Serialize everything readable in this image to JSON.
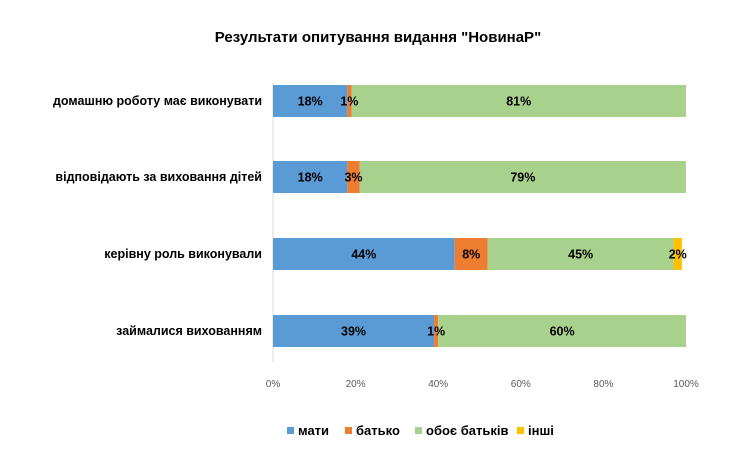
{
  "chart_data": {
    "type": "bar",
    "orientation": "horizontal",
    "stacked": true,
    "title": "Результати опитування видання \"НовинаР\"",
    "categories": [
      "домашню роботу має виконувати",
      "відповідають за виховання дітей",
      "керівну роль виконували",
      "займалися вихованням"
    ],
    "series": [
      {
        "name": "мати",
        "color": "#5B9BD5",
        "values": [
          18,
          18,
          44,
          39
        ],
        "labels": [
          "18%",
          "18%",
          "44%",
          "39%"
        ]
      },
      {
        "name": "батько",
        "color": "#ED7D31",
        "values": [
          1,
          3,
          8,
          1
        ],
        "labels": [
          "1%",
          "3%",
          "8%",
          "1%"
        ]
      },
      {
        "name": "обоє батьків",
        "color": "#A9D18E",
        "values": [
          81,
          79,
          45,
          60
        ],
        "labels": [
          "81%",
          "79%",
          "45%",
          "60%"
        ]
      },
      {
        "name": "інші",
        "color": "#FFC000",
        "values": [
          0,
          0,
          2,
          0
        ],
        "labels": [
          "",
          "",
          "2%",
          ""
        ]
      }
    ],
    "xlim": [
      0,
      100
    ],
    "x_ticks": [
      "0%",
      "20%",
      "40%",
      "60%",
      "80%",
      "100%"
    ],
    "grid": false,
    "legend_position": "bottom"
  }
}
